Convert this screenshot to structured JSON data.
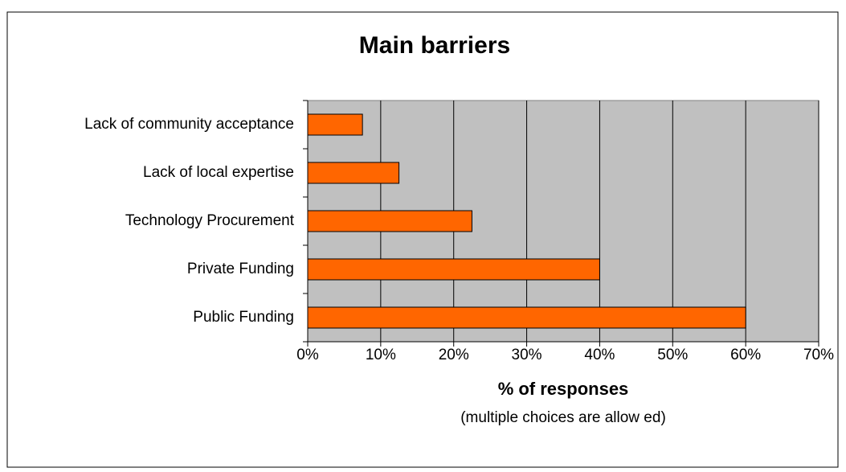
{
  "chart_data": {
    "type": "hbar",
    "title": "Main barriers",
    "categories": [
      "Lack of community acceptance",
      "Lack of local expertise",
      "Technology Procurement",
      "Private Funding",
      "Public Funding"
    ],
    "values": [
      7.5,
      12.5,
      22.5,
      40,
      60
    ],
    "color": "#ff6600",
    "xlim": [
      0,
      70
    ],
    "xticks": [
      {
        "value": 0,
        "label": "0%"
      },
      {
        "value": 10,
        "label": "10%"
      },
      {
        "value": 20,
        "label": "20%"
      },
      {
        "value": 30,
        "label": "30%"
      },
      {
        "value": 40,
        "label": "40%"
      },
      {
        "value": 50,
        "label": "50%"
      },
      {
        "value": 60,
        "label": "60%"
      },
      {
        "value": 70,
        "label": "70%"
      }
    ],
    "x_label": "% of responses",
    "x_sublabel": "(multiple choices are allow ed)",
    "grid": true
  }
}
